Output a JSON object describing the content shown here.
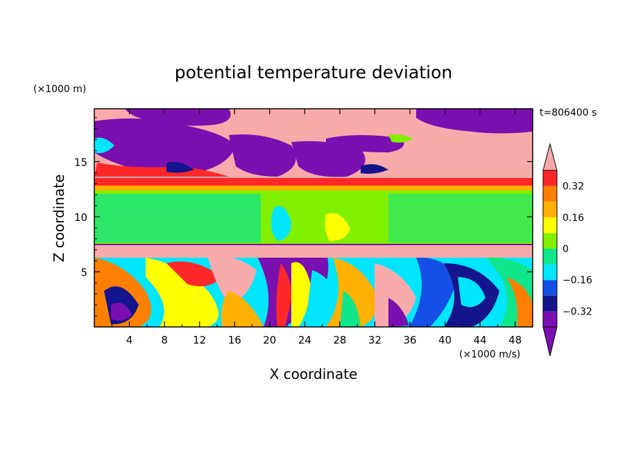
{
  "chart_data": {
    "type": "heatmap",
    "title": "potential temperature deviation",
    "xlabel": "X coordinate",
    "ylabel": "Z coordinate",
    "x_unit": "(×1000 m/s)",
    "y_unit": "(×1000 m)",
    "time_label": "t=806400 s",
    "xlim": [
      0,
      50
    ],
    "ylim": [
      0,
      19.8
    ],
    "x_ticks": [
      4,
      8,
      12,
      16,
      20,
      24,
      28,
      32,
      36,
      40,
      44,
      48
    ],
    "x_tick_labels": [
      "4",
      "8",
      "12",
      "16",
      "20",
      "24",
      "28",
      "32",
      "36",
      "40",
      "44",
      "48"
    ],
    "y_ticks": [
      5,
      10,
      15
    ],
    "y_tick_labels": [
      "5",
      "10",
      "15"
    ],
    "colorbar": {
      "levels": [
        -0.4,
        -0.32,
        -0.24,
        -0.16,
        -0.08,
        0,
        0.08,
        0.16,
        0.24,
        0.32,
        0.4
      ],
      "tick_values": [
        -0.32,
        -0.16,
        0,
        0.16,
        0.32
      ],
      "tick_labels": [
        "−0.32",
        "−0.16",
        "0",
        "0.16",
        "0.32"
      ],
      "colors": [
        "#7a10b0",
        "#14148c",
        "#1450e6",
        "#00e6ff",
        "#10e68c",
        "#80f000",
        "#ffff00",
        "#ffb000",
        "#ff8000",
        "#ff2828",
        "#f8aaaa"
      ],
      "extend": "both"
    },
    "regions": [
      {
        "band": "z 0–7 km",
        "description_level": "mixed, range -0.4 to 0.4"
      },
      {
        "band": "z 7–7.8 km",
        "level": 0.4
      },
      {
        "band": "z 7.8–12.5 km",
        "level": 0.04
      },
      {
        "band": "z 12.5–14 km",
        "level": 0.36
      },
      {
        "band": "z 14–19.8 km",
        "description_level": "alternating -0.4 and 0.4"
      }
    ]
  }
}
